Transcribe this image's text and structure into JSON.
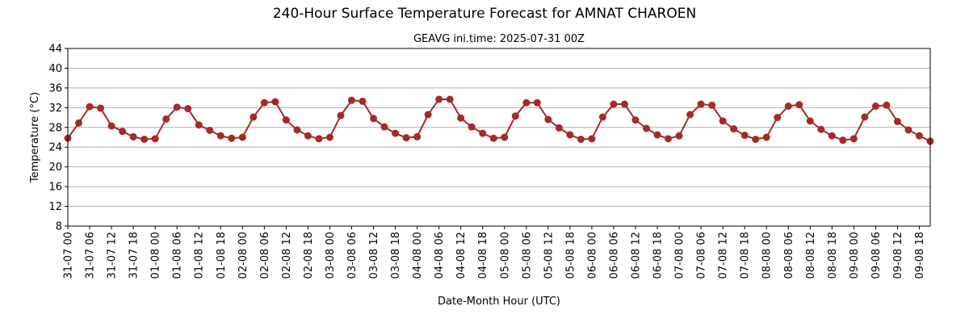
{
  "chart_data": {
    "type": "line",
    "title": "240-Hour Surface Temperature Forecast for AMNAT CHAROEN",
    "subtitle": "GEAVG ini.time: 2025-07-31 00Z",
    "xlabel": "Date-Month Hour (UTC)",
    "ylabel": "Temperature (°C)",
    "ylim": [
      8,
      44
    ],
    "yticks": [
      8,
      12,
      16,
      20,
      24,
      28,
      32,
      36,
      40,
      44
    ],
    "grid": "horizontal",
    "x_tick_labels": [
      "31-07 00",
      "31-07 06",
      "31-07 12",
      "31-07 18",
      "01-08 00",
      "01-08 06",
      "01-08 12",
      "01-08 18",
      "02-08 00",
      "02-08 06",
      "02-08 12",
      "02-08 18",
      "03-08 00",
      "03-08 06",
      "03-08 12",
      "03-08 18",
      "04-08 00",
      "04-08 06",
      "04-08 12",
      "04-08 18",
      "05-08 00",
      "05-08 06",
      "05-08 12",
      "05-08 18",
      "06-08 00",
      "06-08 06",
      "06-08 12",
      "06-08 18",
      "07-08 00",
      "07-08 06",
      "07-08 12",
      "07-08 18",
      "08-08 00",
      "08-08 06",
      "08-08 12",
      "08-08 18",
      "09-08 00",
      "09-08 06",
      "09-08 12",
      "09-08 18"
    ],
    "x_interval_hours": 3,
    "series": [
      {
        "name": "",
        "color": "#a52a2a",
        "values": [
          25.8,
          28.9,
          32.2,
          31.9,
          28.3,
          27.2,
          26.1,
          25.6,
          25.7,
          29.7,
          32.1,
          31.8,
          28.5,
          27.4,
          26.3,
          25.8,
          26.0,
          30.1,
          33.0,
          33.2,
          29.5,
          27.5,
          26.3,
          25.7,
          26.0,
          30.4,
          33.5,
          33.3,
          29.8,
          28.1,
          26.8,
          25.9,
          26.1,
          30.6,
          33.7,
          33.7,
          29.9,
          28.1,
          26.8,
          25.8,
          26.0,
          30.3,
          33.0,
          33.0,
          29.6,
          27.9,
          26.5,
          25.6,
          25.7,
          30.1,
          32.7,
          32.7,
          29.5,
          27.8,
          26.5,
          25.7,
          26.3,
          30.6,
          32.7,
          32.5,
          29.3,
          27.7,
          26.4,
          25.6,
          26.0,
          30.0,
          32.3,
          32.6,
          29.3,
          27.6,
          26.3,
          25.4,
          25.7,
          30.1,
          32.3,
          32.5,
          29.2,
          27.5,
          26.3,
          25.2
        ]
      }
    ]
  }
}
